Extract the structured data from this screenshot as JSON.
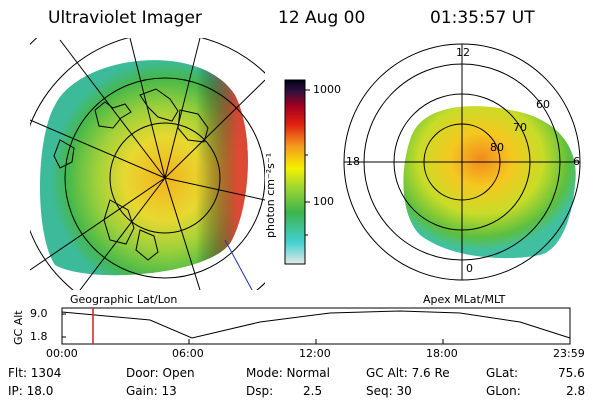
{
  "header": {
    "instrument": "Ultraviolet Imager",
    "date": "12 Aug 00",
    "time": "01:35:57 UT"
  },
  "colorbar": {
    "ticks": [
      "1000",
      "100"
    ],
    "unit_label": "photon cm⁻²s⁻¹",
    "scale": "log",
    "colors": [
      "#e6e6e6",
      "#40d0d0",
      "#3cb44b",
      "#a0d830",
      "#f5f000",
      "#f59a1e",
      "#e02010",
      "#a00020",
      "#301040",
      "#000018"
    ]
  },
  "panels": {
    "left_caption": "Geographic Lat/Lon",
    "right_caption": "Apex MLat/MLT",
    "mlt_labels": {
      "top": "12",
      "left": "18",
      "right": "6",
      "bottom": "0"
    },
    "mlat_labels": [
      "60",
      "70",
      "80"
    ]
  },
  "altitude_plot": {
    "ylabel": "GC Alt",
    "y_ticks": [
      "9.0",
      "1.8"
    ],
    "x_ticks": [
      "00:00",
      "06:00",
      "12:00",
      "18:00",
      "23:59"
    ],
    "marker_color": "#d02020"
  },
  "info": {
    "flt": "Flt: 1304",
    "ip": "IP: 18.0",
    "door": "Door: Open",
    "gain": "Gain: 13",
    "mode": "Mode: Normal",
    "dsp_label": "Dsp:",
    "dsp_value": "2.5",
    "gc_alt": "GC Alt: 7.6 Re",
    "seq": "Seq: 30",
    "glat_label": "GLat:",
    "glat_value": "75.6",
    "glon_label": "GLon:",
    "glon_value": "2.8"
  }
}
